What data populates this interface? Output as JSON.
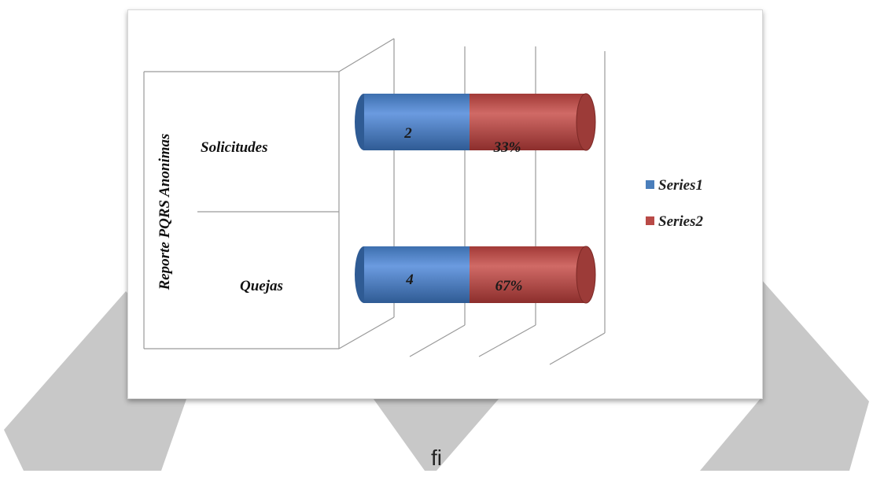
{
  "chart_data": {
    "type": "bar",
    "orientation": "horizontal",
    "style": "3d-cylinder-stacked",
    "ylabel": "Reporte PQRS Anonimas",
    "categories": [
      "Solicitudes",
      "Quejas"
    ],
    "series": [
      {
        "name": "Series1",
        "values": [
          2,
          4
        ],
        "labels": [
          "2",
          "4"
        ],
        "color": "#4a7ebb"
      },
      {
        "name": "Series2",
        "values": [
          33,
          67
        ],
        "labels": [
          "33%",
          "67%"
        ],
        "color": "#b94a47"
      }
    ],
    "legend_position": "right",
    "grid": true
  },
  "caption": "fi                                                                                                                                                                         "
}
